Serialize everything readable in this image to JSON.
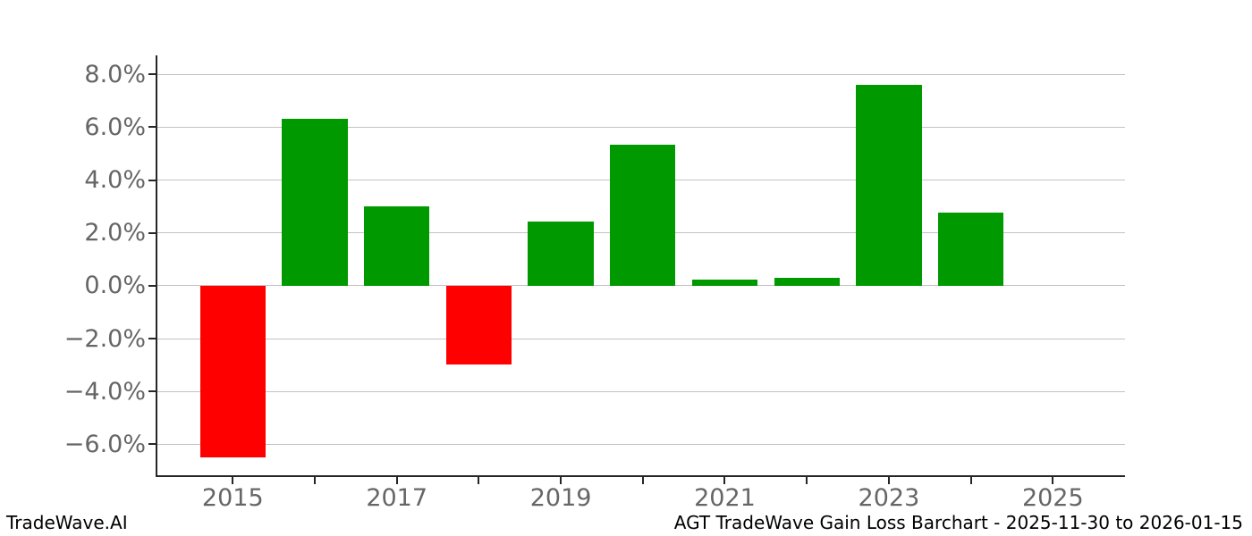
{
  "watermark": "TradeWave.AI",
  "caption": "AGT TradeWave Gain Loss Barchart - 2025-11-30 to 2026-01-15",
  "chart_data": {
    "type": "bar",
    "title": "",
    "xlabel": "",
    "ylabel": "",
    "unit": "%",
    "x": [
      2015,
      2016,
      2017,
      2018,
      2019,
      2020,
      2021,
      2022,
      2023,
      2024
    ],
    "values": [
      -6.48,
      6.31,
      3.02,
      -2.98,
      2.42,
      5.35,
      0.24,
      0.31,
      7.62,
      2.76
    ],
    "bar_color_positive": "#009a00",
    "bar_color_negative": "#ff0000",
    "bar_width_fraction": 0.8,
    "xlim": [
      2014.07,
      2025.88
    ],
    "ylim": [
      -7.2,
      8.72
    ],
    "yticks": [
      8,
      6,
      4,
      2,
      0,
      -2,
      -4,
      -6
    ],
    "ytick_labels": [
      "8.0%",
      "6.0%",
      "4.0%",
      "2.0%",
      "0.0%",
      "−2.0%",
      "−4.0%",
      "−6.0%"
    ],
    "xticks": [
      2015,
      2016,
      2017,
      2018,
      2019,
      2020,
      2021,
      2022,
      2023,
      2024,
      2025
    ],
    "xtick_labeled": [
      2015,
      2017,
      2019,
      2021,
      2023,
      2025
    ],
    "grid": true,
    "grid_color": "#c3c3c3",
    "legend": false
  }
}
